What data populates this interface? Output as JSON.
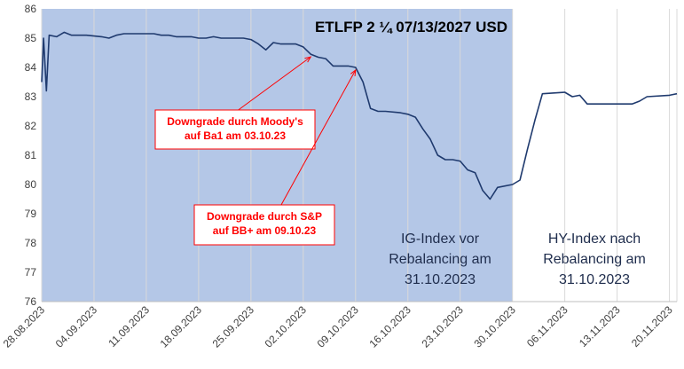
{
  "chart_data": {
    "type": "line",
    "title": "ETLFP 2 ¼ 07/13/2027 USD",
    "xlabel": "",
    "ylabel": "",
    "ylim": [
      76,
      86
    ],
    "yticks": [
      76,
      77,
      78,
      79,
      80,
      81,
      82,
      83,
      84,
      85,
      86
    ],
    "x_tick_labels": [
      "28.08.2023",
      "04.09.2023",
      "11.09.2023",
      "18.09.2023",
      "25.09.2023",
      "02.10.2023",
      "09.10.2023",
      "16.10.2023",
      "23.10.2023",
      "30.10.2023",
      "06.11.2023",
      "13.11.2023",
      "20.11.2023"
    ],
    "x_range": [
      "2023-08-28",
      "2023-11-21"
    ],
    "grid": {
      "horizontal": false,
      "vertical": true
    },
    "shaded_region": {
      "from": "2023-08-28",
      "to": "2023-10-30",
      "color": "#b4c7e7"
    },
    "line_color": "#1f3a6e",
    "series": [
      {
        "x": [
          "2023-08-28",
          "2023-08-28T06:00",
          "2023-08-28T15:00",
          "2023-08-29",
          "2023-08-30",
          "2023-08-31",
          "2023-09-01",
          "2023-09-03",
          "2023-09-05",
          "2023-09-06",
          "2023-09-07",
          "2023-09-08",
          "2023-09-10",
          "2023-09-11",
          "2023-09-12",
          "2023-09-13",
          "2023-09-14",
          "2023-09-15",
          "2023-09-17",
          "2023-09-18",
          "2023-09-19",
          "2023-09-20",
          "2023-09-21",
          "2023-09-22",
          "2023-09-24",
          "2023-09-25",
          "2023-09-26",
          "2023-09-27",
          "2023-09-28",
          "2023-09-29",
          "2023-10-01",
          "2023-10-02",
          "2023-10-03",
          "2023-10-04",
          "2023-10-05",
          "2023-10-06",
          "2023-10-08",
          "2023-10-09",
          "2023-10-10",
          "2023-10-11",
          "2023-10-12",
          "2023-10-13",
          "2023-10-15",
          "2023-10-16",
          "2023-10-17",
          "2023-10-18",
          "2023-10-19",
          "2023-10-20",
          "2023-10-21",
          "2023-10-22",
          "2023-10-23",
          "2023-10-24",
          "2023-10-25",
          "2023-10-26",
          "2023-10-27",
          "2023-10-28",
          "2023-10-30",
          "2023-10-31",
          "2023-11-01",
          "2023-11-02",
          "2023-11-03",
          "2023-11-06",
          "2023-11-07",
          "2023-11-08",
          "2023-11-09",
          "2023-11-10",
          "2023-11-13",
          "2023-11-14",
          "2023-11-15",
          "2023-11-16",
          "2023-11-17",
          "2023-11-20",
          "2023-11-21"
        ],
        "values": [
          83.5,
          85.0,
          83.2,
          85.1,
          85.05,
          85.2,
          85.1,
          85.1,
          85.05,
          85.0,
          85.1,
          85.15,
          85.15,
          85.15,
          85.15,
          85.1,
          85.1,
          85.05,
          85.05,
          85.0,
          85.0,
          85.05,
          85.0,
          85.0,
          85.0,
          84.95,
          84.8,
          84.6,
          84.85,
          84.8,
          84.8,
          84.7,
          84.45,
          84.35,
          84.3,
          84.05,
          84.05,
          84.0,
          83.5,
          82.6,
          82.5,
          82.5,
          82.45,
          82.4,
          82.3,
          81.9,
          81.55,
          81.0,
          80.85,
          80.85,
          80.8,
          80.5,
          80.4,
          79.8,
          79.5,
          79.9,
          80.0,
          80.15,
          81.2,
          82.2,
          83.1,
          83.15,
          83.0,
          83.05,
          82.75,
          82.75,
          82.75,
          82.75,
          82.75,
          82.85,
          83.0,
          83.05,
          83.1
        ]
      }
    ],
    "annotations": [
      {
        "lines": [
          "Downgrade durch Moody's",
          "auf Ba1 am 03.10.23"
        ],
        "target": {
          "x": "2023-10-03",
          "y": 84.45
        }
      },
      {
        "lines": [
          "Downgrade durch S&P",
          "auf BB+ am 09.10.23"
        ],
        "target": {
          "x": "2023-10-09",
          "y": 84.0
        }
      }
    ],
    "region_labels": [
      {
        "lines": [
          "IG-Index vor",
          "Rebalancing am",
          "31.10.2023"
        ]
      },
      {
        "lines": [
          "HY-Index nach",
          "Rebalancing am",
          "31.10.2023"
        ]
      }
    ]
  }
}
